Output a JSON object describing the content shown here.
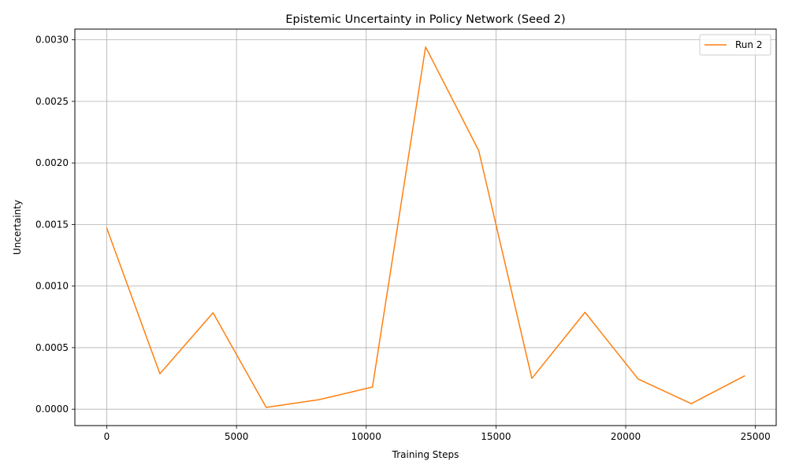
{
  "chart_data": {
    "type": "line",
    "title": "Epistemic Uncertainty in Policy Network (Seed 2)",
    "xlabel": "Training Steps",
    "ylabel": "Uncertainty",
    "xlim": [
      -1230,
      25800
    ],
    "ylim": [
      -0.000133,
      0.003087
    ],
    "x_ticks": [
      0,
      5000,
      10000,
      15000,
      20000,
      25000
    ],
    "x_tick_labels": [
      "0",
      "5000",
      "10000",
      "15000",
      "20000",
      "25000"
    ],
    "y_ticks": [
      0.0,
      0.0005,
      0.001,
      0.0015,
      0.002,
      0.0025,
      0.003
    ],
    "y_tick_labels": [
      "0.0000",
      "0.0005",
      "0.0010",
      "0.0015",
      "0.0020",
      "0.0025",
      "0.0030"
    ],
    "grid": true,
    "legend_position": "top-right",
    "series": [
      {
        "name": "Run 2",
        "color": "#ff7f0e",
        "x": [
          0,
          2048,
          4096,
          6144,
          8192,
          10240,
          12288,
          14336,
          16384,
          18432,
          20480,
          22528,
          24576
        ],
        "y": [
          0.00147,
          0.000288,
          0.000783,
          1.5e-05,
          7.8e-05,
          0.00018,
          0.002942,
          0.0021,
          0.00025,
          0.000787,
          0.000245,
          4.5e-05,
          0.00027
        ]
      }
    ]
  }
}
